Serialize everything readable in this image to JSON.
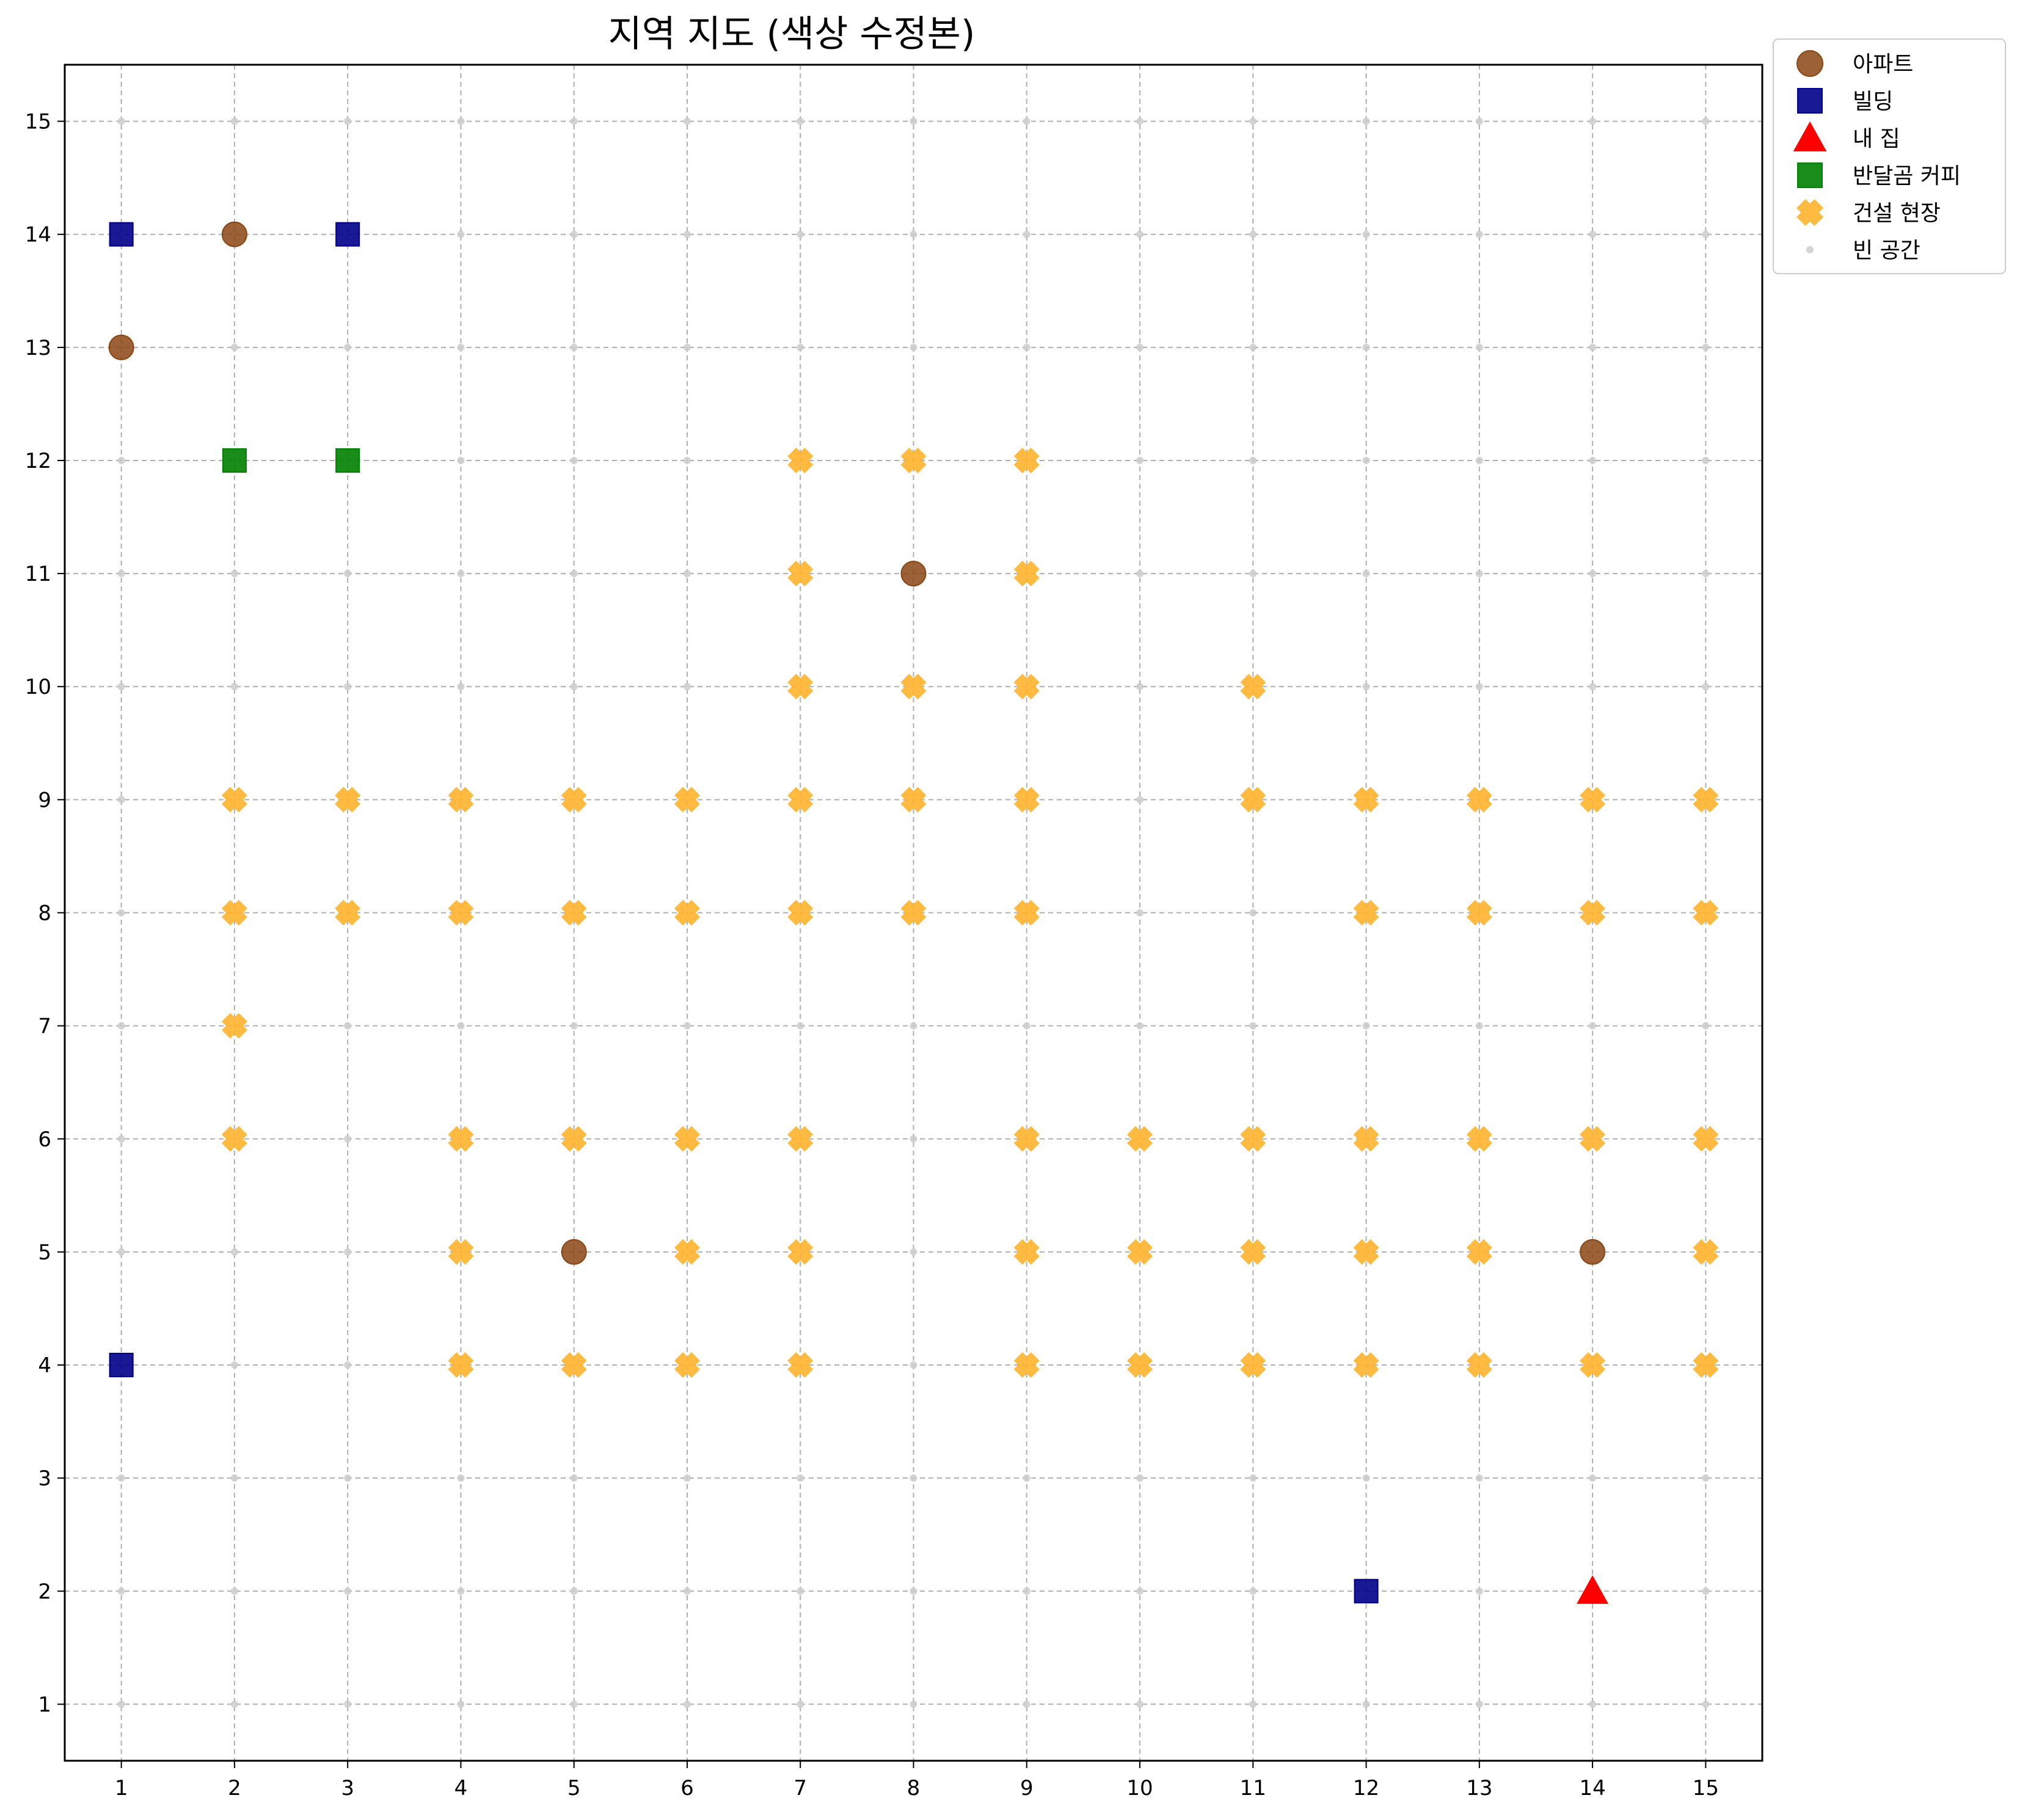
{
  "chart_data": {
    "type": "scatter",
    "title": "지역 지도 (색상 수정본)",
    "xlabel": "",
    "ylabel": "",
    "xlim": [
      0.5,
      15.5
    ],
    "ylim": [
      15.5,
      0.5
    ],
    "y_inverted": true,
    "xticks": [
      1,
      2,
      3,
      4,
      5,
      6,
      7,
      8,
      9,
      10,
      11,
      12,
      13,
      14,
      15
    ],
    "yticks": [
      1,
      2,
      3,
      4,
      5,
      6,
      7,
      8,
      9,
      10,
      11,
      12,
      13,
      14,
      15
    ],
    "grid": true,
    "legend_position": "outside-top-right",
    "series": [
      {
        "name": "아파트",
        "marker": "circle",
        "color": "#8B4513",
        "points": [
          [
            5,
            5
          ],
          [
            14,
            5
          ],
          [
            8,
            11
          ],
          [
            1,
            13
          ],
          [
            2,
            14
          ]
        ]
      },
      {
        "name": "빌딩",
        "marker": "square",
        "color": "#00008B",
        "points": [
          [
            12,
            2
          ],
          [
            1,
            4
          ],
          [
            1,
            14
          ],
          [
            3,
            14
          ]
        ]
      },
      {
        "name": "내 집",
        "marker": "triangle",
        "color": "#FF0000",
        "points": [
          [
            14,
            2
          ]
        ]
      },
      {
        "name": "반달곰 커피",
        "marker": "square",
        "color": "#008000",
        "points": [
          [
            2,
            12
          ],
          [
            3,
            12
          ]
        ]
      },
      {
        "name": "건설 현장",
        "marker": "x",
        "color": "#FFB22C",
        "points": [
          [
            4,
            4
          ],
          [
            5,
            4
          ],
          [
            6,
            4
          ],
          [
            7,
            4
          ],
          [
            9,
            4
          ],
          [
            10,
            4
          ],
          [
            11,
            4
          ],
          [
            12,
            4
          ],
          [
            13,
            4
          ],
          [
            14,
            4
          ],
          [
            15,
            4
          ],
          [
            4,
            5
          ],
          [
            6,
            5
          ],
          [
            7,
            5
          ],
          [
            9,
            5
          ],
          [
            10,
            5
          ],
          [
            11,
            5
          ],
          [
            12,
            5
          ],
          [
            13,
            5
          ],
          [
            15,
            5
          ],
          [
            2,
            6
          ],
          [
            4,
            6
          ],
          [
            5,
            6
          ],
          [
            6,
            6
          ],
          [
            7,
            6
          ],
          [
            9,
            6
          ],
          [
            10,
            6
          ],
          [
            11,
            6
          ],
          [
            12,
            6
          ],
          [
            13,
            6
          ],
          [
            14,
            6
          ],
          [
            15,
            6
          ],
          [
            2,
            7
          ],
          [
            2,
            8
          ],
          [
            3,
            8
          ],
          [
            4,
            8
          ],
          [
            5,
            8
          ],
          [
            6,
            8
          ],
          [
            7,
            8
          ],
          [
            8,
            8
          ],
          [
            9,
            8
          ],
          [
            12,
            8
          ],
          [
            13,
            8
          ],
          [
            14,
            8
          ],
          [
            15,
            8
          ],
          [
            2,
            9
          ],
          [
            3,
            9
          ],
          [
            4,
            9
          ],
          [
            5,
            9
          ],
          [
            6,
            9
          ],
          [
            7,
            9
          ],
          [
            8,
            9
          ],
          [
            9,
            9
          ],
          [
            11,
            9
          ],
          [
            12,
            9
          ],
          [
            13,
            9
          ],
          [
            14,
            9
          ],
          [
            15,
            9
          ],
          [
            7,
            10
          ],
          [
            8,
            10
          ],
          [
            9,
            10
          ],
          [
            11,
            10
          ],
          [
            7,
            11
          ],
          [
            9,
            11
          ],
          [
            7,
            12
          ],
          [
            8,
            12
          ],
          [
            9,
            12
          ]
        ]
      },
      {
        "name": "빈 공간",
        "marker": "dot",
        "color": "#CCCCCC",
        "points": "all remaining grid cells"
      }
    ]
  }
}
